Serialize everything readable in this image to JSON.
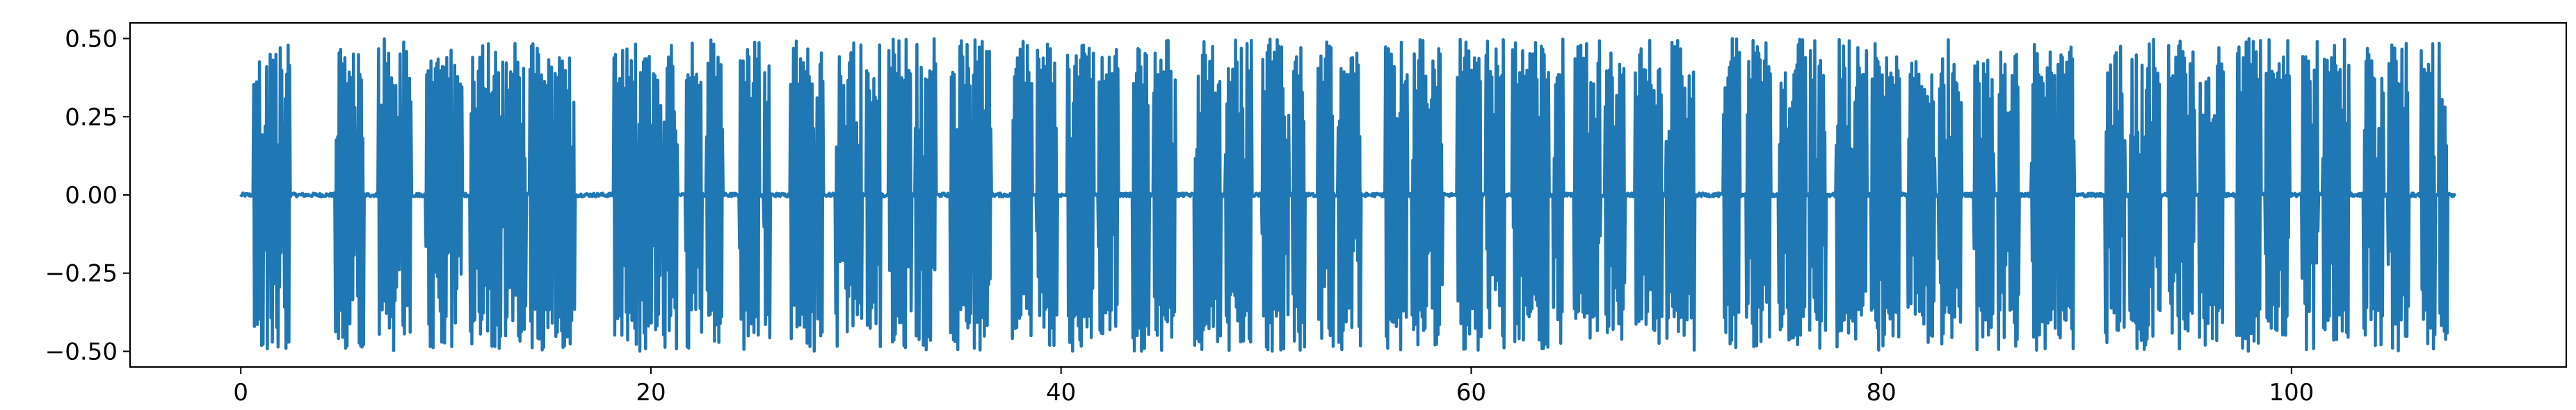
{
  "chart_data": {
    "type": "line",
    "title": "",
    "xlabel": "",
    "ylabel": "",
    "xlim": [
      -5.4,
      113.4
    ],
    "ylim": [
      -0.55,
      0.55
    ],
    "grid": false,
    "legend": "none",
    "line_color": "#1f77b4",
    "x_ticks": [
      0,
      20,
      40,
      60,
      80,
      100
    ],
    "x_tick_labels": [
      "0",
      "20",
      "40",
      "60",
      "80",
      "100"
    ],
    "y_ticks": [
      0.5,
      0.25,
      0.0,
      -0.25,
      -0.5
    ],
    "y_tick_labels": [
      "0.50",
      "0.25",
      "0.00",
      "−0.25",
      "−0.50"
    ],
    "amplitude_max": 0.5,
    "amplitude_min": -0.5,
    "duration": 108.0,
    "active_segments": [
      [
        0.6,
        1.3
      ],
      [
        1.4,
        2.0
      ],
      [
        2.1,
        2.4
      ],
      [
        4.6,
        5.6
      ],
      [
        5.7,
        6.0
      ],
      [
        6.7,
        7.8
      ],
      [
        7.9,
        8.3
      ],
      [
        9.0,
        10.3
      ],
      [
        10.4,
        10.8
      ],
      [
        11.2,
        12.8
      ],
      [
        12.9,
        13.9
      ],
      [
        14.1,
        15.2
      ],
      [
        15.3,
        16.3
      ],
      [
        18.2,
        19.3
      ],
      [
        19.4,
        20.5
      ],
      [
        20.6,
        21.3
      ],
      [
        21.7,
        22.5
      ],
      [
        22.7,
        23.5
      ],
      [
        24.3,
        25.3
      ],
      [
        25.5,
        25.8
      ],
      [
        26.8,
        28.0
      ],
      [
        28.1,
        28.4
      ],
      [
        29.0,
        30.3
      ],
      [
        30.5,
        31.2
      ],
      [
        31.6,
        32.7
      ],
      [
        32.9,
        33.9
      ],
      [
        34.6,
        35.6
      ],
      [
        35.7,
        36.6
      ],
      [
        37.6,
        38.6
      ],
      [
        38.8,
        39.8
      ],
      [
        40.3,
        41.6
      ],
      [
        41.8,
        42.8
      ],
      [
        43.5,
        44.3
      ],
      [
        44.5,
        45.6
      ],
      [
        46.5,
        47.8
      ],
      [
        48.0,
        49.3
      ],
      [
        49.8,
        51.1
      ],
      [
        51.3,
        51.9
      ],
      [
        52.5,
        53.3
      ],
      [
        53.5,
        54.6
      ],
      [
        55.8,
        56.9
      ],
      [
        57.1,
        58.6
      ],
      [
        59.3,
        60.5
      ],
      [
        60.7,
        61.6
      ],
      [
        62.0,
        63.8
      ],
      [
        64.0,
        64.5
      ],
      [
        65.0,
        66.3
      ],
      [
        66.5,
        67.5
      ],
      [
        68.0,
        69.3
      ],
      [
        69.5,
        70.9
      ],
      [
        72.3,
        73.1
      ],
      [
        73.4,
        74.6
      ],
      [
        75.0,
        76.3
      ],
      [
        76.5,
        77.3
      ],
      [
        77.8,
        79.3
      ],
      [
        79.5,
        80.9
      ],
      [
        81.3,
        82.6
      ],
      [
        82.8,
        83.9
      ],
      [
        84.5,
        85.5
      ],
      [
        85.7,
        86.7
      ],
      [
        87.3,
        88.5
      ],
      [
        88.6,
        89.4
      ],
      [
        90.9,
        91.9
      ],
      [
        92.1,
        93.6
      ],
      [
        94.0,
        95.3
      ],
      [
        95.5,
        96.7
      ],
      [
        97.3,
        98.5
      ],
      [
        98.7,
        99.9
      ],
      [
        100.5,
        101.3
      ],
      [
        101.5,
        102.8
      ],
      [
        103.5,
        104.5
      ],
      [
        104.7,
        105.7
      ],
      [
        106.3,
        107.0
      ],
      [
        107.2,
        107.6
      ]
    ]
  }
}
